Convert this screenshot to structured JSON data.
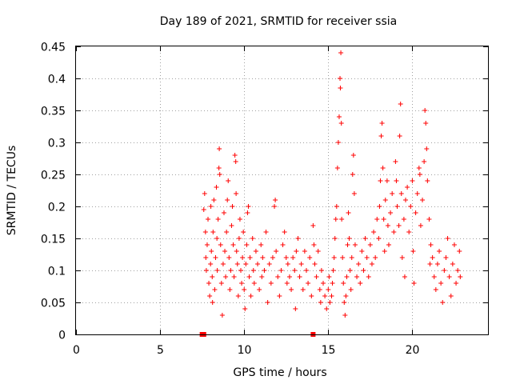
{
  "chart_data": {
    "type": "scatter",
    "title": "Day 189 of 2021, SRMTID for receiver ssia",
    "xlabel": "GPS time / hours",
    "ylabel": "SRMTID / TECUs",
    "xlim": [
      0,
      24.5
    ],
    "ylim": [
      0,
      0.45
    ],
    "x_ticks": [
      0,
      5,
      10,
      15,
      20
    ],
    "x_tick_labels": [
      "0",
      "5",
      "10",
      "15",
      "20"
    ],
    "y_ticks": [
      0,
      0.05,
      0.1,
      0.15,
      0.2,
      0.25,
      0.3,
      0.35,
      0.4,
      0.45
    ],
    "y_tick_labels": [
      "0",
      "0.05",
      "0.1",
      "0.15",
      "0.2",
      "0.25",
      "0.3",
      "0.35",
      "0.4",
      "0.45"
    ],
    "grid": true,
    "marker": "+",
    "color": "#ff0000",
    "outage_markers": [
      {
        "x": 7.5,
        "y": 0
      },
      {
        "x": 7.6,
        "y": 0
      },
      {
        "x": 14.1,
        "y": 0
      }
    ],
    "series": [
      {
        "name": "SRMTID",
        "points": [
          [
            7.6,
            0.195
          ],
          [
            7.65,
            0.22
          ],
          [
            7.7,
            0.16
          ],
          [
            7.72,
            0.12
          ],
          [
            7.75,
            0.1
          ],
          [
            7.8,
            0.14
          ],
          [
            7.85,
            0.18
          ],
          [
            7.9,
            0.08
          ],
          [
            7.95,
            0.06
          ],
          [
            8.0,
            0.11
          ],
          [
            8.02,
            0.2
          ],
          [
            8.05,
            0.13
          ],
          [
            8.1,
            0.09
          ],
          [
            8.12,
            0.05
          ],
          [
            8.15,
            0.16
          ],
          [
            8.2,
            0.21
          ],
          [
            8.25,
            0.07
          ],
          [
            8.3,
            0.12
          ],
          [
            8.35,
            0.23
          ],
          [
            8.38,
            0.15
          ],
          [
            8.4,
            0.1
          ],
          [
            8.45,
            0.18
          ],
          [
            8.5,
            0.26
          ],
          [
            8.52,
            0.29
          ],
          [
            8.55,
            0.25
          ],
          [
            8.6,
            0.14
          ],
          [
            8.65,
            0.08
          ],
          [
            8.7,
            0.03
          ],
          [
            8.75,
            0.11
          ],
          [
            8.8,
            0.19
          ],
          [
            8.85,
            0.13
          ],
          [
            8.9,
            0.09
          ],
          [
            8.95,
            0.16
          ],
          [
            9.0,
            0.21
          ],
          [
            9.05,
            0.24
          ],
          [
            9.1,
            0.12
          ],
          [
            9.15,
            0.07
          ],
          [
            9.2,
            0.1
          ],
          [
            9.25,
            0.17
          ],
          [
            9.3,
            0.2
          ],
          [
            9.35,
            0.14
          ],
          [
            9.4,
            0.09
          ],
          [
            9.45,
            0.28
          ],
          [
            9.5,
            0.27
          ],
          [
            9.52,
            0.22
          ],
          [
            9.55,
            0.13
          ],
          [
            9.6,
            0.11
          ],
          [
            9.65,
            0.06
          ],
          [
            9.7,
            0.15
          ],
          [
            9.75,
            0.18
          ],
          [
            9.8,
            0.1
          ],
          [
            9.85,
            0.08
          ],
          [
            9.9,
            0.12
          ],
          [
            9.95,
            0.16
          ],
          [
            10.0,
            0.07
          ],
          [
            10.05,
            0.04
          ],
          [
            10.1,
            0.11
          ],
          [
            10.15,
            0.14
          ],
          [
            10.2,
            0.19
          ],
          [
            10.25,
            0.2
          ],
          [
            10.3,
            0.09
          ],
          [
            10.35,
            0.12
          ],
          [
            10.4,
            0.06
          ],
          [
            10.5,
            0.15
          ],
          [
            10.55,
            0.1
          ],
          [
            10.6,
            0.08
          ],
          [
            10.7,
            0.13
          ],
          [
            10.8,
            0.11
          ],
          [
            10.9,
            0.07
          ],
          [
            11.0,
            0.14
          ],
          [
            11.05,
            0.09
          ],
          [
            11.1,
            0.12
          ],
          [
            11.2,
            0.1
          ],
          [
            11.3,
            0.16
          ],
          [
            11.4,
            0.05
          ],
          [
            11.5,
            0.11
          ],
          [
            11.6,
            0.08
          ],
          [
            11.7,
            0.12
          ],
          [
            11.8,
            0.2
          ],
          [
            11.85,
            0.21
          ],
          [
            11.9,
            0.13
          ],
          [
            12.0,
            0.09
          ],
          [
            12.1,
            0.06
          ],
          [
            12.2,
            0.1
          ],
          [
            12.3,
            0.14
          ],
          [
            12.4,
            0.16
          ],
          [
            12.5,
            0.12
          ],
          [
            12.55,
            0.08
          ],
          [
            12.6,
            0.11
          ],
          [
            12.7,
            0.09
          ],
          [
            12.8,
            0.07
          ],
          [
            12.9,
            0.12
          ],
          [
            13.0,
            0.1
          ],
          [
            13.05,
            0.04
          ],
          [
            13.1,
            0.13
          ],
          [
            13.2,
            0.15
          ],
          [
            13.3,
            0.09
          ],
          [
            13.4,
            0.11
          ],
          [
            13.5,
            0.07
          ],
          [
            13.6,
            0.13
          ],
          [
            13.7,
            0.1
          ],
          [
            13.8,
            0.08
          ],
          [
            13.9,
            0.12
          ],
          [
            14.0,
            0.06
          ],
          [
            14.1,
            0.17
          ],
          [
            14.15,
            0.14
          ],
          [
            14.2,
            0.11
          ],
          [
            14.3,
            0.09
          ],
          [
            14.4,
            0.13
          ],
          [
            14.5,
            0.07
          ],
          [
            14.55,
            0.05
          ],
          [
            14.6,
            0.1
          ],
          [
            14.7,
            0.08
          ],
          [
            14.8,
            0.06
          ],
          [
            14.9,
            0.04
          ],
          [
            15.0,
            0.07
          ],
          [
            15.05,
            0.09
          ],
          [
            15.1,
            0.05
          ],
          [
            15.2,
            0.06
          ],
          [
            15.25,
            0.08
          ],
          [
            15.3,
            0.1
          ],
          [
            15.35,
            0.12
          ],
          [
            15.4,
            0.15
          ],
          [
            15.45,
            0.18
          ],
          [
            15.5,
            0.2
          ],
          [
            15.55,
            0.26
          ],
          [
            15.6,
            0.3
          ],
          [
            15.65,
            0.34
          ],
          [
            15.7,
            0.4
          ],
          [
            15.75,
            0.44
          ],
          [
            15.72,
            0.385
          ],
          [
            15.78,
            0.33
          ],
          [
            15.8,
            0.18
          ],
          [
            15.85,
            0.12
          ],
          [
            15.9,
            0.08
          ],
          [
            15.95,
            0.05
          ],
          [
            16.0,
            0.03
          ],
          [
            16.05,
            0.06
          ],
          [
            16.1,
            0.09
          ],
          [
            16.15,
            0.14
          ],
          [
            16.2,
            0.19
          ],
          [
            16.25,
            0.15
          ],
          [
            16.3,
            0.1
          ],
          [
            16.35,
            0.07
          ],
          [
            16.4,
            0.12
          ],
          [
            16.45,
            0.25
          ],
          [
            16.5,
            0.28
          ],
          [
            16.55,
            0.22
          ],
          [
            16.6,
            0.14
          ],
          [
            16.7,
            0.09
          ],
          [
            16.8,
            0.11
          ],
          [
            16.9,
            0.08
          ],
          [
            17.0,
            0.13
          ],
          [
            17.1,
            0.1
          ],
          [
            17.2,
            0.15
          ],
          [
            17.3,
            0.12
          ],
          [
            17.4,
            0.09
          ],
          [
            17.5,
            0.14
          ],
          [
            17.6,
            0.11
          ],
          [
            17.7,
            0.16
          ],
          [
            17.8,
            0.12
          ],
          [
            17.9,
            0.18
          ],
          [
            18.0,
            0.15
          ],
          [
            18.05,
            0.2
          ],
          [
            18.1,
            0.24
          ],
          [
            18.15,
            0.31
          ],
          [
            18.2,
            0.33
          ],
          [
            18.25,
            0.26
          ],
          [
            18.3,
            0.18
          ],
          [
            18.35,
            0.13
          ],
          [
            18.4,
            0.21
          ],
          [
            18.5,
            0.24
          ],
          [
            18.55,
            0.17
          ],
          [
            18.6,
            0.14
          ],
          [
            18.7,
            0.19
          ],
          [
            18.8,
            0.22
          ],
          [
            18.9,
            0.16
          ],
          [
            19.0,
            0.27
          ],
          [
            19.05,
            0.24
          ],
          [
            19.1,
            0.2
          ],
          [
            19.2,
            0.17
          ],
          [
            19.25,
            0.31
          ],
          [
            19.3,
            0.36
          ],
          [
            19.35,
            0.22
          ],
          [
            19.4,
            0.12
          ],
          [
            19.5,
            0.18
          ],
          [
            19.55,
            0.09
          ],
          [
            19.6,
            0.21
          ],
          [
            19.7,
            0.23
          ],
          [
            19.8,
            0.16
          ],
          [
            19.9,
            0.2
          ],
          [
            20.0,
            0.24
          ],
          [
            20.05,
            0.13
          ],
          [
            20.1,
            0.08
          ],
          [
            20.2,
            0.19
          ],
          [
            20.3,
            0.22
          ],
          [
            20.4,
            0.26
          ],
          [
            20.45,
            0.25
          ],
          [
            20.5,
            0.17
          ],
          [
            20.6,
            0.21
          ],
          [
            20.7,
            0.27
          ],
          [
            20.75,
            0.35
          ],
          [
            20.8,
            0.33
          ],
          [
            20.85,
            0.29
          ],
          [
            20.9,
            0.24
          ],
          [
            21.0,
            0.18
          ],
          [
            21.05,
            0.11
          ],
          [
            21.1,
            0.14
          ],
          [
            21.2,
            0.12
          ],
          [
            21.3,
            0.09
          ],
          [
            21.4,
            0.07
          ],
          [
            21.5,
            0.11
          ],
          [
            21.6,
            0.13
          ],
          [
            21.7,
            0.08
          ],
          [
            21.8,
            0.05
          ],
          [
            21.9,
            0.1
          ],
          [
            22.0,
            0.12
          ],
          [
            22.1,
            0.15
          ],
          [
            22.2,
            0.09
          ],
          [
            22.3,
            0.06
          ],
          [
            22.4,
            0.11
          ],
          [
            22.5,
            0.14
          ],
          [
            22.6,
            0.08
          ],
          [
            22.7,
            0.1
          ],
          [
            22.8,
            0.13
          ],
          [
            22.85,
            0.09
          ]
        ]
      }
    ]
  }
}
